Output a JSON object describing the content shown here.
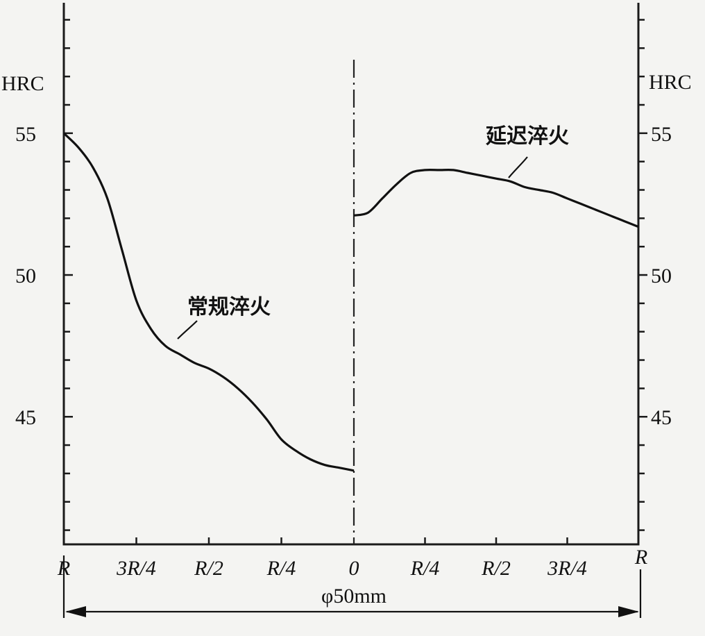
{
  "chart_data": {
    "type": "line",
    "y_axis": {
      "label_left": "HRC",
      "label_right": "HRC",
      "ticks": [
        45,
        50,
        55
      ],
      "tick_labels": [
        "45",
        "50",
        "55"
      ],
      "minor_tick_step": 1,
      "ylim": [
        40.5,
        59.6
      ]
    },
    "x_axis": {
      "tick_labels_left": [
        "R",
        "3R/4",
        "R/2",
        "R/4",
        "0"
      ],
      "tick_labels_right": [
        "R/4",
        "R/2",
        "3R/4",
        "R"
      ],
      "left_positions": [
        1.0,
        0.75,
        0.5,
        0.25,
        0.0
      ],
      "right_positions": [
        0.25,
        0.5,
        0.75,
        1.0
      ]
    },
    "dimension_label": "φ50mm",
    "series": [
      {
        "name": "常规淬火",
        "side": "left",
        "points": [
          [
            1.0,
            55.0
          ],
          [
            0.95,
            54.5
          ],
          [
            0.9,
            53.8
          ],
          [
            0.85,
            52.7
          ],
          [
            0.8,
            50.9
          ],
          [
            0.75,
            49.1
          ],
          [
            0.7,
            48.1
          ],
          [
            0.65,
            47.5
          ],
          [
            0.6,
            47.2
          ],
          [
            0.55,
            46.9
          ],
          [
            0.5,
            46.7
          ],
          [
            0.45,
            46.4
          ],
          [
            0.4,
            46.0
          ],
          [
            0.35,
            45.5
          ],
          [
            0.3,
            44.9
          ],
          [
            0.25,
            44.2
          ],
          [
            0.2,
            43.8
          ],
          [
            0.15,
            43.5
          ],
          [
            0.1,
            43.3
          ],
          [
            0.05,
            43.2
          ],
          [
            0.0,
            43.1
          ]
        ]
      },
      {
        "name": "延迟淬火",
        "side": "right",
        "points": [
          [
            0.0,
            52.1
          ],
          [
            0.05,
            52.2
          ],
          [
            0.1,
            52.7
          ],
          [
            0.15,
            53.2
          ],
          [
            0.2,
            53.6
          ],
          [
            0.25,
            53.7
          ],
          [
            0.3,
            53.7
          ],
          [
            0.35,
            53.7
          ],
          [
            0.4,
            53.6
          ],
          [
            0.45,
            53.5
          ],
          [
            0.5,
            53.4
          ],
          [
            0.55,
            53.3
          ],
          [
            0.6,
            53.1
          ],
          [
            0.65,
            53.0
          ],
          [
            0.7,
            52.9
          ],
          [
            0.75,
            52.7
          ],
          [
            0.8,
            52.5
          ],
          [
            0.85,
            52.3
          ],
          [
            0.9,
            52.1
          ],
          [
            0.95,
            51.9
          ],
          [
            1.0,
            51.7
          ]
        ]
      }
    ]
  }
}
